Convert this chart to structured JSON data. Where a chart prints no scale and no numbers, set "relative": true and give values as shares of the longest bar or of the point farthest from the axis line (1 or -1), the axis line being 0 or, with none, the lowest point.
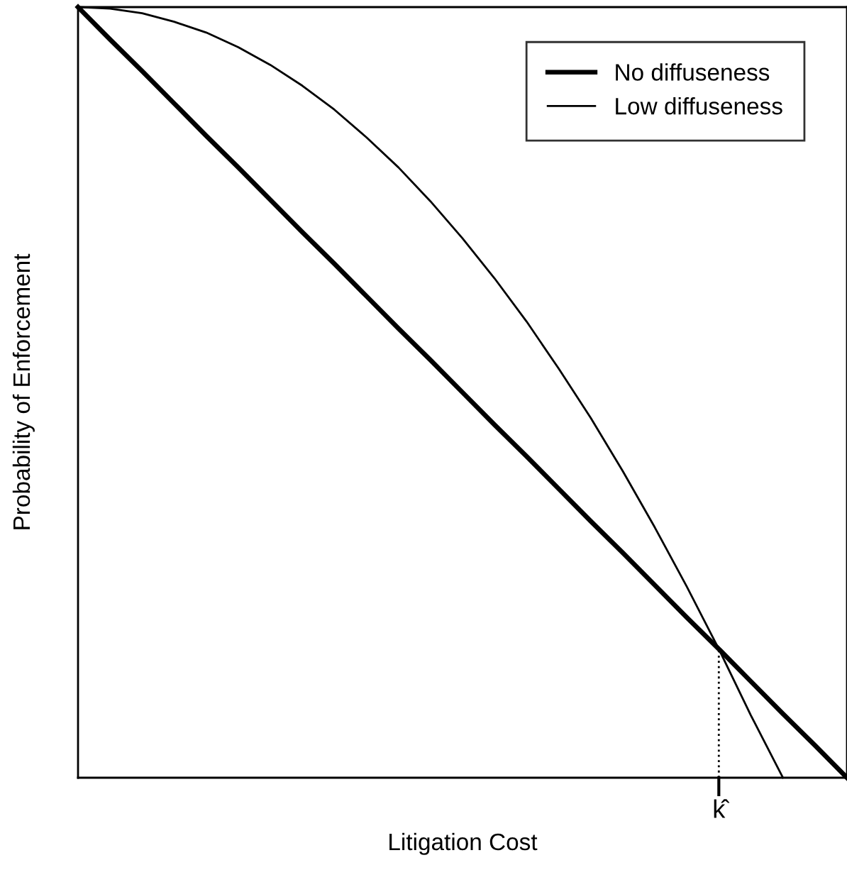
{
  "chart_data": {
    "type": "line",
    "relative": true,
    "xlabel": "Litigation Cost",
    "ylabel": "Probability of Enforcement",
    "categories": [
      null,
      null,
      null,
      null,
      null,
      null,
      null,
      null,
      null,
      null,
      null,
      null,
      null,
      null,
      null,
      null,
      null,
      null,
      null,
      null,
      null,
      null,
      null,
      null,
      null
    ],
    "series": [
      {
        "name": "No diffuseness",
        "color": "#000000",
        "values": [
          1,
          0.958,
          0.917,
          0.875,
          0.833,
          0.792,
          0.75,
          0.708,
          0.667,
          0.625,
          0.583,
          0.542,
          0.5,
          0.458,
          0.417,
          0.375,
          0.333,
          0.292,
          0.25,
          0.208,
          0.167,
          0.125,
          0.083,
          0.042,
          0
        ]
      },
      {
        "name": "Low diffuseness",
        "color": "#000000",
        "values": [
          1,
          0.998,
          0.992,
          0.981,
          0.967,
          0.948,
          0.925,
          0.898,
          0.867,
          0.831,
          0.792,
          0.748,
          0.7,
          0.648,
          0.592,
          0.531,
          0.467,
          0.398,
          0.325,
          0.248,
          0.167,
          0.081,
          0,
          null,
          null
        ]
      }
    ],
    "annotations": [
      "k̂"
    ],
    "legend": "top right",
    "marker": "none",
    "line_style": "solid"
  }
}
